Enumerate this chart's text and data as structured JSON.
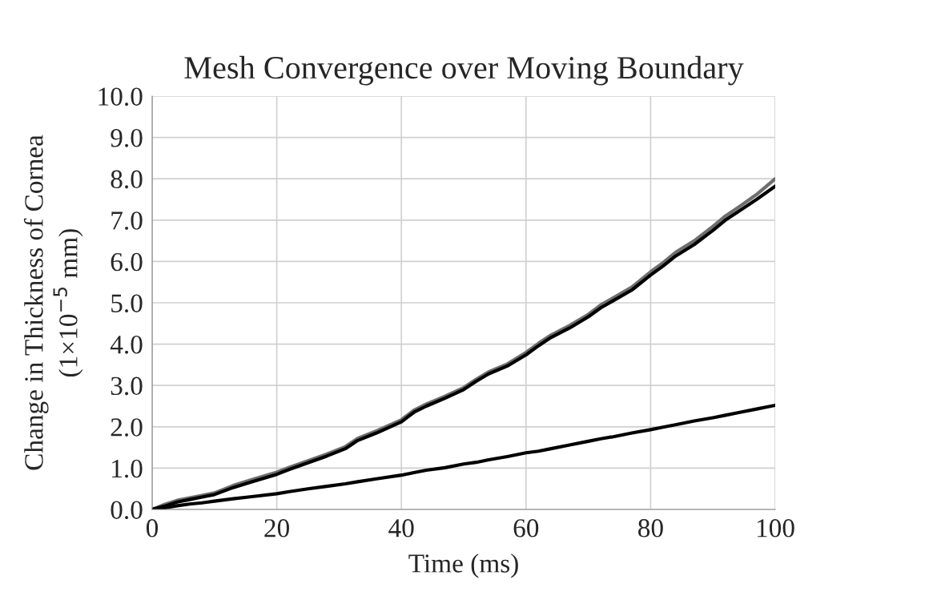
{
  "chart_data": {
    "type": "line",
    "title": "Mesh Convergence over Moving Boundary",
    "xlabel": "Time (ms)",
    "ylabel": "Change in Thickness of Cornea\n(1×10$^{−5}$ mm)",
    "xlim": [
      0,
      100
    ],
    "ylim": [
      0,
      10
    ],
    "xticks": [
      0,
      20,
      40,
      60,
      80,
      100
    ],
    "yticks": [
      {
        "value": 0,
        "label": "0.0"
      },
      {
        "value": 1,
        "label": "1.0"
      },
      {
        "value": 2,
        "label": "2.0"
      },
      {
        "value": 3,
        "label": "3.0"
      },
      {
        "value": 4,
        "label": "4.0"
      },
      {
        "value": 5,
        "label": "5.0"
      },
      {
        "value": 6,
        "label": "6.0"
      },
      {
        "value": 7,
        "label": "7.0"
      },
      {
        "value": 8,
        "label": "8.0"
      },
      {
        "value": 9,
        "label": "9.0"
      },
      {
        "value": 10,
        "label": "10.0"
      }
    ],
    "grid": true,
    "marker": "none",
    "line_style": "solid",
    "x": [
      0,
      2,
      4,
      6,
      8,
      10,
      13,
      16,
      20,
      22,
      25,
      28,
      31,
      33,
      36,
      40,
      42,
      44,
      47,
      50,
      52,
      54,
      57,
      60,
      62,
      64,
      67,
      70,
      72,
      74,
      77,
      80,
      82,
      84,
      87,
      90,
      92,
      94,
      97,
      100
    ],
    "series": [
      {
        "color": "#6e6e6e",
        "values": [
          0,
          0.12,
          0.22,
          0.28,
          0.34,
          0.4,
          0.58,
          0.72,
          0.9,
          1.02,
          1.18,
          1.34,
          1.52,
          1.72,
          1.9,
          2.17,
          2.4,
          2.55,
          2.74,
          2.95,
          3.15,
          3.33,
          3.52,
          3.8,
          4.02,
          4.22,
          4.45,
          4.72,
          4.95,
          5.12,
          5.38,
          5.75,
          5.97,
          6.22,
          6.5,
          6.85,
          7.1,
          7.3,
          7.62,
          8.0
        ]
      },
      {
        "color": "#000000",
        "values": [
          0,
          0.08,
          0.18,
          0.24,
          0.3,
          0.36,
          0.53,
          0.67,
          0.85,
          0.97,
          1.13,
          1.29,
          1.47,
          1.67,
          1.85,
          2.12,
          2.35,
          2.5,
          2.69,
          2.9,
          3.1,
          3.28,
          3.47,
          3.74,
          3.96,
          4.16,
          4.39,
          4.66,
          4.88,
          5.05,
          5.31,
          5.67,
          5.89,
          6.13,
          6.41,
          6.75,
          7.0,
          7.2,
          7.5,
          7.82
        ]
      },
      {
        "color": "#000000",
        "values": [
          0,
          0.04,
          0.09,
          0.13,
          0.16,
          0.2,
          0.26,
          0.31,
          0.38,
          0.43,
          0.5,
          0.56,
          0.62,
          0.67,
          0.74,
          0.83,
          0.89,
          0.95,
          1.01,
          1.1,
          1.14,
          1.2,
          1.28,
          1.37,
          1.41,
          1.47,
          1.56,
          1.65,
          1.71,
          1.76,
          1.85,
          1.93,
          1.99,
          2.05,
          2.14,
          2.22,
          2.28,
          2.34,
          2.43,
          2.52
        ]
      }
    ]
  }
}
